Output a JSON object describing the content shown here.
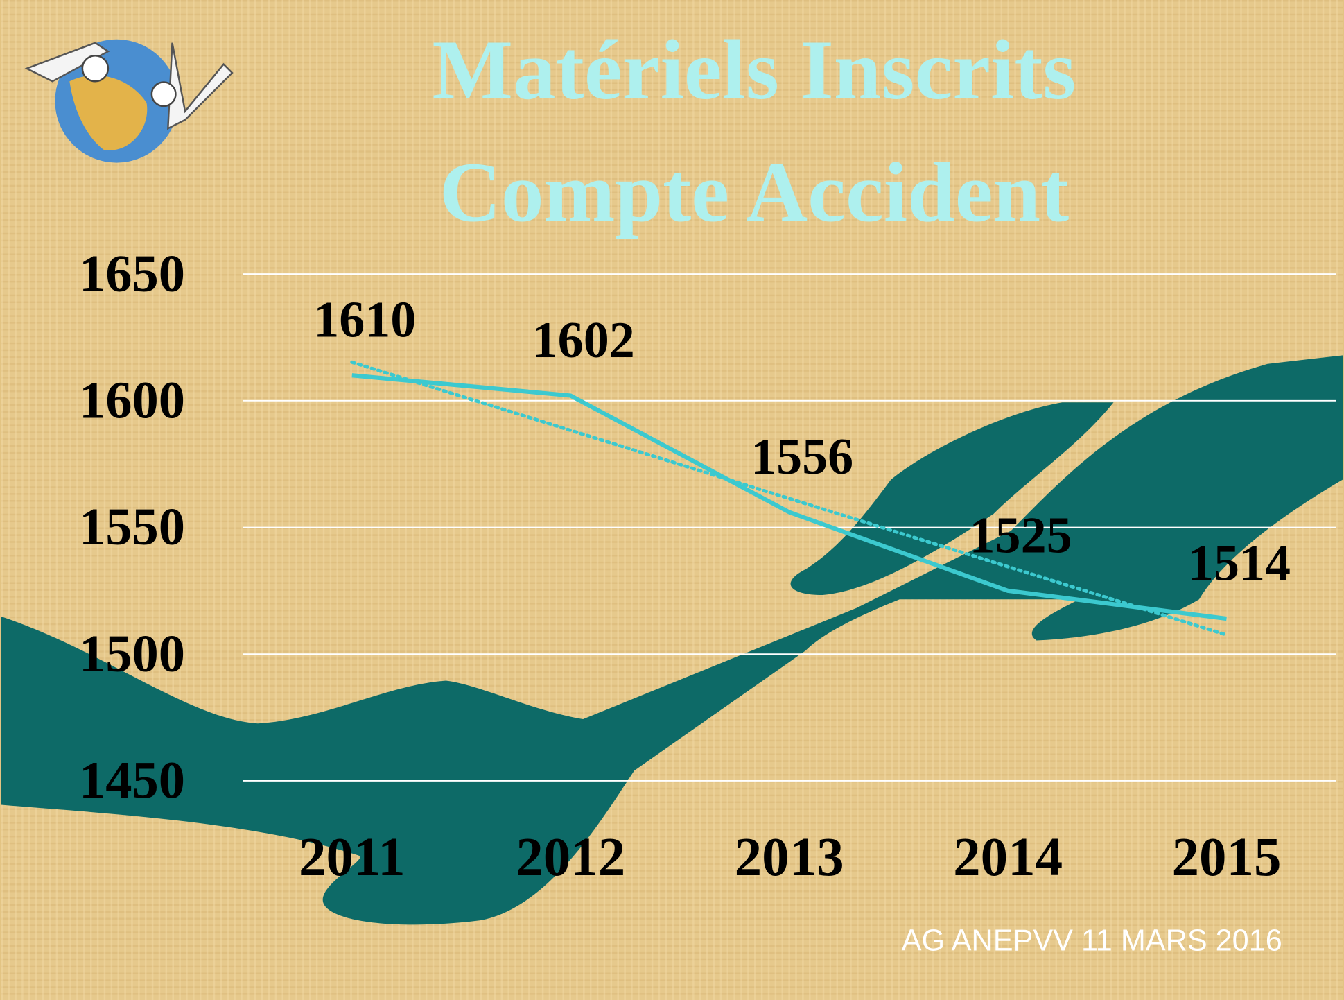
{
  "chart_data": {
    "type": "line",
    "title": [
      "Matériels Inscrits",
      "Compte Accident"
    ],
    "categories": [
      "2011",
      "2012",
      "2013",
      "2014",
      "2015"
    ],
    "series": [
      {
        "color": "#3cc9cf",
        "values": [
          1610,
          1602,
          1556,
          1525,
          1514
        ]
      }
    ],
    "trendline": true,
    "ylim": [
      1450,
      1650
    ],
    "yticks": [
      1450,
      1500,
      1550,
      1600,
      1650
    ],
    "grid": true,
    "footer": "AG ANEPVV 11 MARS 2016"
  }
}
